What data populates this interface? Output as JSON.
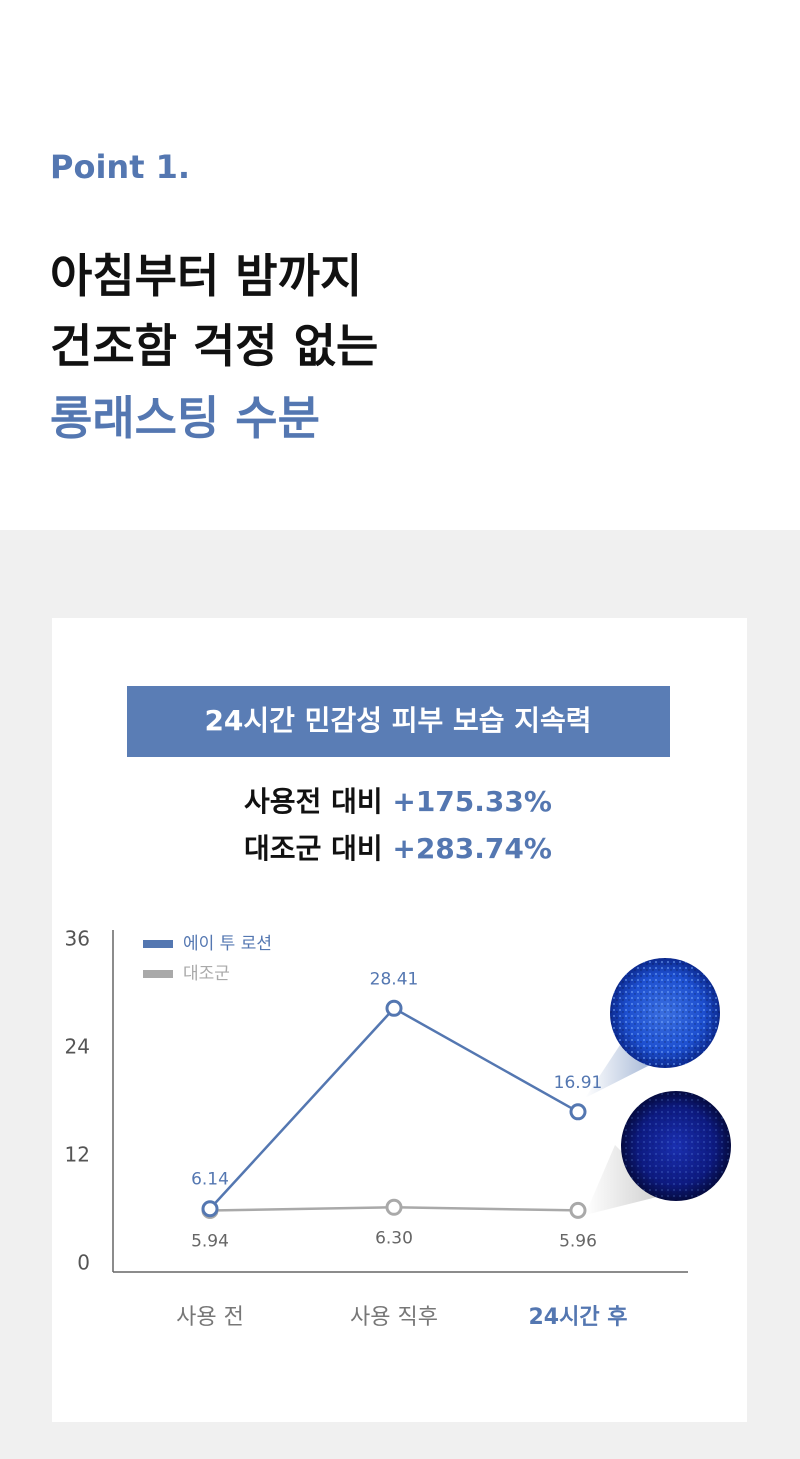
{
  "header": {
    "point": "Point 1.",
    "title_lines": [
      "아침부터 밤까지",
      "건조함 걱정 없는"
    ],
    "highlight": "롱래스팅 수분"
  },
  "chart_data": {
    "type": "line",
    "title": "24시간 민감성 피부 보습 지속력",
    "annotations": [
      {
        "label": "사용전 대비",
        "value": "+175.33%"
      },
      {
        "label": "대조군 대비",
        "value": "+283.74%"
      }
    ],
    "categories": [
      "사용 전",
      "사용 직후",
      "24시간 후"
    ],
    "series": [
      {
        "name": "에이 투 로션",
        "color": "#5477b1",
        "values": [
          6.14,
          28.41,
          16.91
        ]
      },
      {
        "name": "대조군",
        "color": "#a9a9a9",
        "values": [
          5.94,
          6.3,
          5.96
        ],
        "value_labels": [
          "5.94",
          "6.30",
          "5.96"
        ]
      }
    ],
    "ylim": [
      0,
      36
    ],
    "yticks": [
      0,
      12,
      24,
      36
    ]
  }
}
